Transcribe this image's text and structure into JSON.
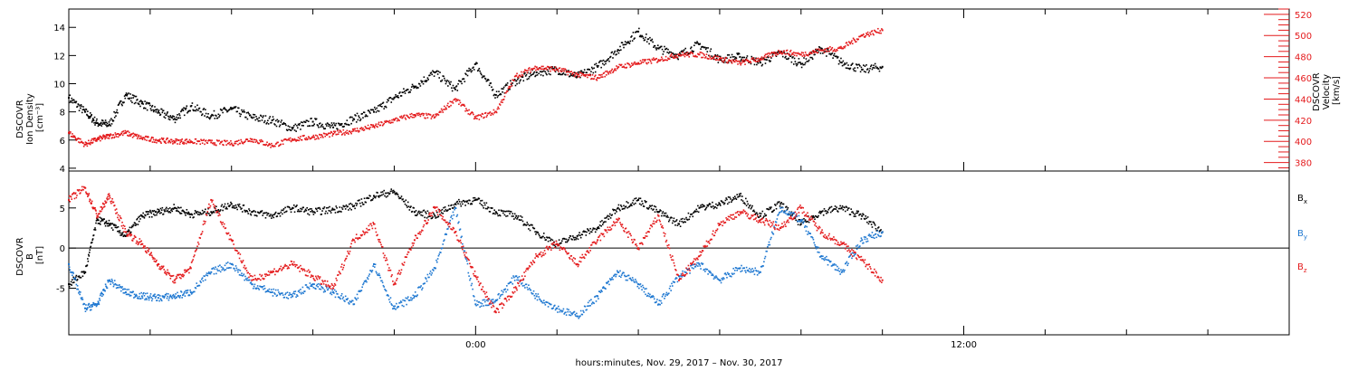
{
  "colors": {
    "black": "#000000",
    "red": "#e41a1c",
    "blue": "#1f78d1"
  },
  "xaxis": {
    "label": "hours:minutes, Nov. 29, 2017 – Nov. 30, 2017",
    "range_hours": [
      -10,
      20
    ],
    "tick_labels": [
      {
        "hour": 0,
        "label": "0:00"
      },
      {
        "hour": 12,
        "label": "12:00"
      }
    ]
  },
  "chart_data": [
    {
      "type": "scatter",
      "panel": "top",
      "left_axis": {
        "label_lines": [
          "DSCOVR",
          "Ion Density",
          "[cm⁻³]"
        ],
        "range": [
          3.8,
          15.3
        ],
        "ticks": [
          4,
          6,
          8,
          10,
          12,
          14
        ]
      },
      "right_axis": {
        "label_lines": [
          "DSCOVR",
          "Velocity",
          "[km/s]"
        ],
        "range": [
          372,
          525
        ],
        "ticks": [
          380,
          400,
          420,
          440,
          460,
          480,
          500,
          520
        ],
        "color": "#e41a1c"
      },
      "series": [
        {
          "color": "#000000",
          "axis": "left",
          "x": [
            -10,
            -9.6,
            -9.3,
            -9.0,
            -8.6,
            -8.2,
            -7.8,
            -7.4,
            -7.0,
            -6.5,
            -6.0,
            -5.5,
            -5.0,
            -4.5,
            -4.0,
            -3.5,
            -3.0,
            -2.5,
            -2.0,
            -1.5,
            -1.0,
            -0.5,
            0,
            0.5,
            1.0,
            1.5,
            2.0,
            2.5,
            3.0,
            3.5,
            4.0,
            4.5,
            5.0,
            5.5,
            6.0,
            6.5,
            7.0,
            7.5,
            8.0,
            8.5,
            9.0,
            9.5,
            10.0
          ],
          "y": [
            9.0,
            8.0,
            7.2,
            7.1,
            9.2,
            8.6,
            8.0,
            7.5,
            8.4,
            7.7,
            8.2,
            7.6,
            7.4,
            6.8,
            7.3,
            6.9,
            7.5,
            8.0,
            9.0,
            9.8,
            10.8,
            9.6,
            11.4,
            9.2,
            10.2,
            10.8,
            11.0,
            10.5,
            11.2,
            12.4,
            13.7,
            12.5,
            12.0,
            12.8,
            11.7,
            11.9,
            11.5,
            12.2,
            11.4,
            12.5,
            11.5,
            11.0,
            11.2
          ]
        },
        {
          "color": "#e41a1c",
          "axis": "right",
          "x": [
            -10,
            -9.6,
            -9.3,
            -9.0,
            -8.6,
            -8.2,
            -7.8,
            -7.4,
            -7.0,
            -6.5,
            -6.0,
            -5.5,
            -5.0,
            -4.5,
            -4.0,
            -3.5,
            -3.0,
            -2.5,
            -2.0,
            -1.5,
            -1.0,
            -0.5,
            0,
            0.5,
            1.0,
            1.5,
            2.0,
            2.5,
            3.0,
            3.5,
            4.0,
            4.5,
            5.0,
            5.5,
            6.0,
            6.5,
            7.0,
            7.5,
            8.0,
            8.5,
            9.0,
            9.5,
            10.0
          ],
          "y": [
            408,
            397,
            402,
            405,
            408,
            403,
            401,
            400,
            400,
            399,
            398,
            402,
            396,
            402,
            404,
            407,
            410,
            414,
            420,
            425,
            423,
            440,
            422,
            428,
            462,
            470,
            468,
            463,
            460,
            470,
            474,
            477,
            482,
            482,
            478,
            474,
            478,
            485,
            482,
            486,
            488,
            500,
            505
          ]
        }
      ]
    },
    {
      "type": "scatter",
      "panel": "bottom",
      "left_axis": {
        "label_lines": [
          "DSCOVR",
          "B",
          "[nT]"
        ],
        "range": [
          -10.8,
          9.6
        ],
        "ticks": [
          -5,
          0,
          5
        ]
      },
      "legend": {
        "placement": "right",
        "entries": [
          {
            "label": "B",
            "sub": "x",
            "color": "#000000"
          },
          {
            "label": "B",
            "sub": "y",
            "color": "#1f78d1"
          },
          {
            "label": "B",
            "sub": "z",
            "color": "#e41a1c"
          }
        ]
      },
      "series": [
        {
          "color": "#000000",
          "x": [
            -10,
            -9.6,
            -9.3,
            -9.0,
            -8.6,
            -8.2,
            -7.8,
            -7.4,
            -7.0,
            -6.5,
            -6.0,
            -5.5,
            -5.0,
            -4.5,
            -4.0,
            -3.5,
            -3.0,
            -2.5,
            -2.0,
            -1.5,
            -1.0,
            -0.5,
            0,
            0.5,
            1.0,
            1.5,
            2.0,
            2.5,
            3.0,
            3.5,
            4.0,
            4.5,
            5.0,
            5.5,
            6.0,
            6.5,
            7.0,
            7.5,
            8.0,
            8.5,
            9.0,
            9.5,
            10.0
          ],
          "y": [
            -4.5,
            -3.0,
            3.5,
            3.0,
            1.5,
            4.0,
            4.5,
            5.0,
            4.2,
            4.5,
            5.5,
            4.5,
            4.0,
            5.0,
            4.5,
            4.8,
            5.2,
            6.5,
            7.0,
            4.5,
            4.0,
            5.5,
            6.0,
            4.5,
            4.0,
            2.0,
            0.5,
            1.5,
            2.5,
            5.0,
            6.0,
            4.5,
            3.0,
            5.0,
            5.5,
            6.5,
            4.0,
            5.5,
            3.0,
            4.5,
            5.0,
            4.0,
            2.0
          ]
        },
        {
          "color": "#1f78d1",
          "x": [
            -10,
            -9.6,
            -9.3,
            -9.0,
            -8.6,
            -8.2,
            -7.8,
            -7.4,
            -7.0,
            -6.5,
            -6.0,
            -5.5,
            -5.0,
            -4.5,
            -4.0,
            -3.5,
            -3.0,
            -2.5,
            -2.0,
            -1.5,
            -1.0,
            -0.5,
            0,
            0.5,
            1.0,
            1.5,
            2.0,
            2.5,
            3.0,
            3.5,
            4.0,
            4.5,
            5.0,
            5.5,
            6.0,
            6.5,
            7.0,
            7.5,
            8.0,
            8.5,
            9.0,
            9.5,
            10.0
          ],
          "y": [
            -2.0,
            -7.5,
            -7.0,
            -4.0,
            -5.5,
            -6.0,
            -6.2,
            -6.0,
            -5.5,
            -3.0,
            -2.0,
            -4.5,
            -5.5,
            -6.0,
            -4.5,
            -5.5,
            -7.0,
            -2.0,
            -7.5,
            -6.0,
            -2.5,
            5.0,
            -7.0,
            -6.5,
            -3.5,
            -6.0,
            -7.5,
            -8.5,
            -6.0,
            -3.0,
            -4.5,
            -7.0,
            -3.5,
            -2.0,
            -4.0,
            -2.5,
            -3.0,
            5.0,
            3.5,
            -1.0,
            -3.0,
            1.0,
            2.0
          ]
        },
        {
          "color": "#e41a1c",
          "x": [
            -10,
            -9.6,
            -9.3,
            -9.0,
            -8.6,
            -8.2,
            -7.8,
            -7.4,
            -7.0,
            -6.5,
            -6.0,
            -5.5,
            -5.0,
            -4.5,
            -4.0,
            -3.5,
            -3.0,
            -2.5,
            -2.0,
            -1.5,
            -1.0,
            -0.5,
            0,
            0.5,
            1.0,
            1.5,
            2.0,
            2.5,
            3.0,
            3.5,
            4.0,
            4.5,
            5.0,
            5.5,
            6.0,
            6.5,
            7.0,
            7.5,
            8.0,
            8.5,
            9.0,
            9.5,
            10.0
          ],
          "y": [
            6.0,
            7.5,
            4.0,
            6.5,
            2.0,
            0.5,
            -2.0,
            -4.0,
            -2.5,
            6.0,
            1.0,
            -4.0,
            -3.0,
            -2.0,
            -3.5,
            -5.0,
            1.0,
            3.0,
            -4.5,
            1.0,
            5.0,
            2.0,
            -3.5,
            -8.0,
            -5.0,
            -1.0,
            0.5,
            -2.0,
            1.0,
            3.5,
            0,
            4.0,
            -4.0,
            -1.0,
            3.0,
            4.5,
            3.5,
            2.5,
            5.0,
            2.0,
            0.5,
            -1.5,
            -4.0
          ]
        }
      ]
    }
  ]
}
